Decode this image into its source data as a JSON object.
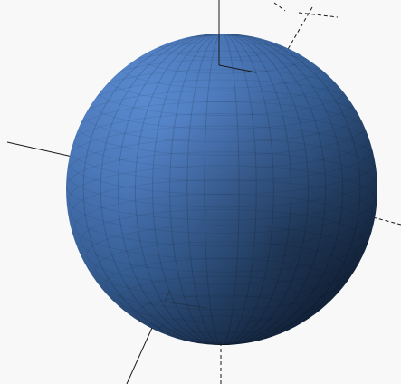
{
  "scene": {
    "background_color": "#f8f8f8",
    "sphere_color": "#3d6aa8",
    "axis_color": "#1a1a1a",
    "shape": "sphere",
    "facet_style": "faceted-lat-long"
  }
}
